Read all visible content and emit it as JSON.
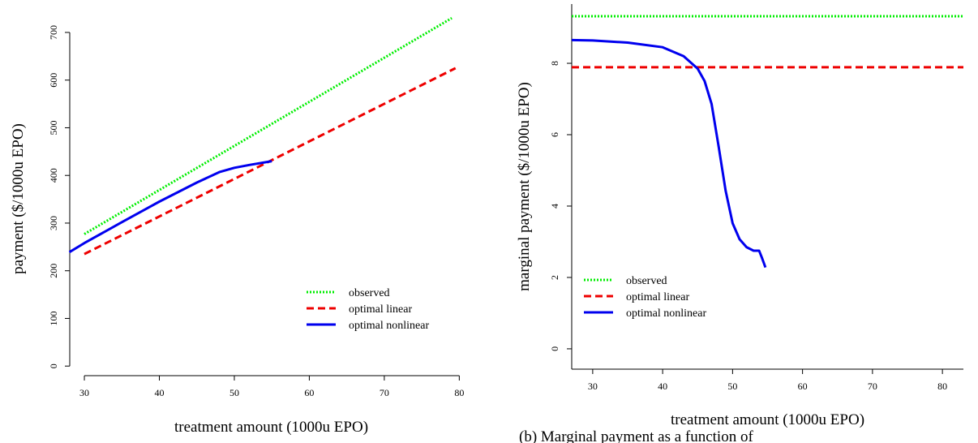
{
  "chart_data": [
    {
      "type": "line",
      "xlabel": "treatment amount (1000u EPO)",
      "ylabel": "payment ($/1000u EPO)",
      "xlim": [
        28.05,
        81.8
      ],
      "ylim": [
        -32,
        734
      ],
      "xticks": [
        30,
        40,
        50,
        60,
        70,
        80
      ],
      "yticks": [
        0,
        100,
        200,
        300,
        400,
        500,
        600,
        700
      ],
      "legend": "bottom-right",
      "series": [
        {
          "name": "observed",
          "color": "#00ee00",
          "linestyle": "dotted",
          "x": [
            30,
            79
          ],
          "values": [
            277,
            730
          ]
        },
        {
          "name": "optimal linear",
          "color": "#ee0000",
          "linestyle": "dashed",
          "x": [
            30,
            79.5
          ],
          "values": [
            235,
            625
          ]
        },
        {
          "name": "optimal nonlinear",
          "color": "#0000ee",
          "linestyle": "solid",
          "x": [
            28,
            30,
            35,
            40,
            45,
            48,
            50,
            52,
            55
          ],
          "values": [
            239,
            258,
            302,
            345,
            385,
            407,
            416,
            422,
            430
          ]
        }
      ]
    },
    {
      "type": "line",
      "xlabel": "treatment amount (1000u EPO)",
      "ylabel": "marginal payment ($/1000u EPO)",
      "xlim": [
        27,
        83
      ],
      "ylim": [
        -0.57,
        9.66
      ],
      "xticks": [
        30,
        40,
        50,
        60,
        70,
        80
      ],
      "yticks": [
        0,
        2,
        4,
        6,
        8
      ],
      "legend": "bottom-left",
      "series": [
        {
          "name": "observed",
          "color": "#00ee00",
          "linestyle": "dotted",
          "x": [
            27,
            83
          ],
          "values": [
            9.32,
            9.32
          ]
        },
        {
          "name": "optimal linear",
          "color": "#ee0000",
          "linestyle": "dashed",
          "x": [
            27,
            83
          ],
          "values": [
            7.89,
            7.89
          ]
        },
        {
          "name": "optimal nonlinear",
          "color": "#0000ee",
          "linestyle": "solid",
          "x": [
            27,
            30,
            35,
            40,
            43,
            45,
            46,
            47,
            48,
            49,
            50,
            51,
            52,
            53,
            53.8,
            54.2,
            54.7
          ],
          "values": [
            8.65,
            8.64,
            8.58,
            8.45,
            8.2,
            7.85,
            7.5,
            6.86,
            5.68,
            4.43,
            3.52,
            3.07,
            2.85,
            2.75,
            2.75,
            2.55,
            2.28
          ]
        }
      ]
    }
  ],
  "caption": "(b)  Marginal payment as a function of"
}
